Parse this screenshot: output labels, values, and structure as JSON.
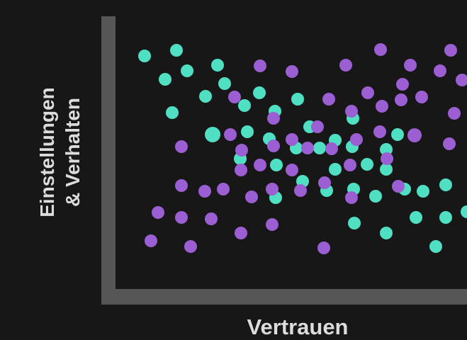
{
  "x_label": "Vertrauen",
  "y_label": [
    "Einstellungen",
    "& Verhalten"
  ]
}
